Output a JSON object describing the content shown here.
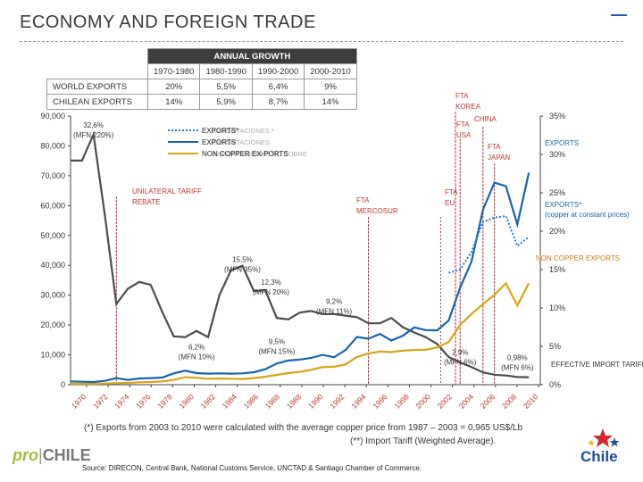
{
  "page": {
    "title": "ECONOMY AND FOREIGN TRADE",
    "note_exports": "(*) Exports from 2003 to 2010 were calculated with the average copper price from 1987 – 2003 = 0,965 US$/Lb",
    "note_tariff": "(**) Import Tariff (Weighted Average).",
    "source": "Source: DIRECON, Central Bank, National Customs Service, UNCTAD & Santiago Chamber of  Commerce.",
    "logo_pro": "pro",
    "logo_sep": "|",
    "logo_chile": "CHILE",
    "brand_chile": "Chile"
  },
  "growth_table": {
    "header": "ANNUAL GROWTH",
    "periods": [
      "1970-1980",
      "1980-1990",
      "1990-2000",
      "2000-2010"
    ],
    "rows": [
      {
        "label": "WORLD EXPORTS",
        "values": [
          "20%",
          "5,5%",
          "6,4%",
          "9%"
        ]
      },
      {
        "label": "CHILEAN EXPORTS",
        "values": [
          "14%",
          "5,9%",
          "8,7%",
          "14%"
        ]
      }
    ]
  },
  "colors": {
    "exports": "#1565b0",
    "exports_const": "#1e7fd4",
    "noncopper": "#d9a418",
    "tariff": "#4d4d4d",
    "event_line": "#b22222",
    "event_label": "#c0392b",
    "blue_label": "#1565b0",
    "orange_label": "#d07a10"
  },
  "chart_data": {
    "type": "line",
    "title": "",
    "x": [
      1970,
      1971,
      1972,
      1973,
      1974,
      1975,
      1976,
      1977,
      1978,
      1979,
      1980,
      1981,
      1982,
      1983,
      1984,
      1985,
      1986,
      1987,
      1988,
      1989,
      1990,
      1991,
      1992,
      1993,
      1994,
      1995,
      1996,
      1997,
      1998,
      1999,
      2000,
      2001,
      2002,
      2003,
      2004,
      2005,
      2006,
      2007,
      2008,
      2009,
      2010
    ],
    "xticks": [
      "1970",
      "1972",
      "1974",
      "1976",
      "1978",
      "1980",
      "1982",
      "1984",
      "1986",
      "1988",
      "1988",
      "1990",
      "1992",
      "1994",
      "1996",
      "1998",
      "2000",
      "2002",
      "2004",
      "2006",
      "2008",
      "2010"
    ],
    "ylim_left": [
      0,
      90000
    ],
    "yticks_left": [
      "0",
      "10,000",
      "20,000",
      "30,000",
      "40,000",
      "50,000",
      "60,000",
      "70,000",
      "80,000",
      "90,000"
    ],
    "ylim_right": [
      0,
      35
    ],
    "yticks_right": [
      "0%",
      "5%",
      "10%",
      "15%",
      "20%",
      "25%",
      "30%",
      "35%"
    ],
    "series": [
      {
        "name": "EXPORTS",
        "axis": "left",
        "style": "solid",
        "values": [
          1100,
          1000,
          900,
          1300,
          2200,
          1600,
          2100,
          2200,
          2400,
          3800,
          4700,
          3900,
          3700,
          3800,
          3700,
          3800,
          4200,
          5200,
          7100,
          8100,
          8400,
          9000,
          10000,
          9200,
          11600,
          16000,
          15400,
          17000,
          14800,
          16400,
          19200,
          18300,
          18200,
          21500,
          32500,
          41300,
          58700,
          67700,
          66500,
          53700,
          71000
        ]
      },
      {
        "name": "EXPORTS*",
        "axis": "left",
        "style": "dotted",
        "values": [
          null,
          null,
          null,
          null,
          null,
          null,
          null,
          null,
          null,
          null,
          null,
          null,
          null,
          null,
          null,
          null,
          null,
          null,
          null,
          null,
          null,
          null,
          null,
          null,
          null,
          null,
          null,
          null,
          null,
          null,
          null,
          null,
          null,
          37500,
          38500,
          44500,
          54500,
          56000,
          56500,
          46500,
          49500
        ]
      },
      {
        "name": "NON COPPER EXPORTS",
        "axis": "left",
        "style": "solid",
        "values": [
          300,
          300,
          300,
          400,
          500,
          600,
          800,
          900,
          1100,
          1600,
          2500,
          2300,
          2000,
          2100,
          2000,
          1900,
          2200,
          2700,
          3300,
          3900,
          4300,
          5000,
          5900,
          6000,
          6800,
          9300,
          10500,
          11100,
          10900,
          11400,
          11600,
          11700,
          12500,
          14300,
          20000,
          23700,
          27000,
          30100,
          34000,
          26500,
          34000
        ]
      },
      {
        "name": "EFFECTIVE IMPORT TARIFF **",
        "axis": "right",
        "style": "solid",
        "values": [
          29.2,
          29.2,
          32.6,
          22.0,
          10.5,
          12.5,
          13.4,
          13.0,
          9.5,
          6.3,
          6.2,
          7.0,
          6.2,
          11.7,
          14.9,
          15.5,
          12.2,
          12.3,
          8.7,
          8.5,
          9.4,
          9.6,
          9.2,
          9.2,
          9.0,
          8.8,
          8.0,
          8.0,
          8.7,
          7.5,
          6.8,
          6.2,
          5.3,
          3.6,
          2.9,
          2.3,
          1.6,
          1.3,
          1.2,
          1.0,
          0.98
        ]
      }
    ],
    "legend": [
      "EXPORTS*",
      "EXPORTS",
      "NON COPPER EX-PORTS"
    ],
    "legend_ghost": [
      "EXPORTACIONES *",
      "EXPORTACIONES",
      "EXPORTACIONES NO COBRE"
    ],
    "series_labels": {
      "exports_const": "EXPORTS*",
      "exports_const_sub": "(copper at constant prices)",
      "exports": "EXPORTS",
      "noncopper": "NON COPPER EXPORTS",
      "tariff": "EFFECTIVE IMPORT TARIFF **"
    },
    "events": [
      {
        "year": 1974,
        "label": "UNILATERAL TARIFF REBATE",
        "lines": [
          "UNILATERAL TARIFF",
          "REBATE"
        ]
      },
      {
        "year": 1996,
        "label": "FTA MERCOSUR",
        "lines": [
          "FTA",
          "MERCOSUR"
        ]
      },
      {
        "year": 2002.3,
        "label": "FTA EU",
        "lines": [
          "FTA",
          "EU"
        ]
      },
      {
        "year": 2003.6,
        "label": "FTA KOREA",
        "lines": [
          "FTA",
          "KOREA"
        ]
      },
      {
        "year": 2004,
        "label": "FTA USA",
        "lines": [
          "FTA",
          "USA"
        ]
      },
      {
        "year": 2006,
        "label": "CHINA",
        "lines": [
          "CHINA"
        ]
      },
      {
        "year": 2007,
        "label": "FTA JAPAN",
        "lines": [
          "FTA",
          "JAPAN"
        ]
      }
    ],
    "annotations": [
      {
        "text": [
          "32,6%",
          "(MFN 220%)"
        ],
        "x": 1972,
        "y_pct": 33.5
      },
      {
        "text": [
          "15,5%",
          "(MFN 35%)"
        ],
        "x": 1985,
        "y_pct": 16.0
      },
      {
        "text": [
          "12,3%",
          "(MFN 20%)"
        ],
        "x": 1987.5,
        "y_pct": 13.0
      },
      {
        "text": [
          "9,2%",
          "(MFN 11%)"
        ],
        "x": 1993,
        "y_pct": 10.5
      },
      {
        "text": [
          "6,2%",
          "(MFN 10%)"
        ],
        "x": 1981,
        "y_pct": 4.6
      },
      {
        "text": [
          "9,5%",
          "(MFN 15%)"
        ],
        "x": 1988,
        "y_pct": 5.3
      },
      {
        "text": [
          "2,9%",
          "(MFN 6%)"
        ],
        "x": 2004,
        "y_pct": 3.9
      },
      {
        "text": [
          "0,98%",
          "(MFN 6%)"
        ],
        "x": 2009,
        "y_pct": 3.2
      }
    ]
  }
}
